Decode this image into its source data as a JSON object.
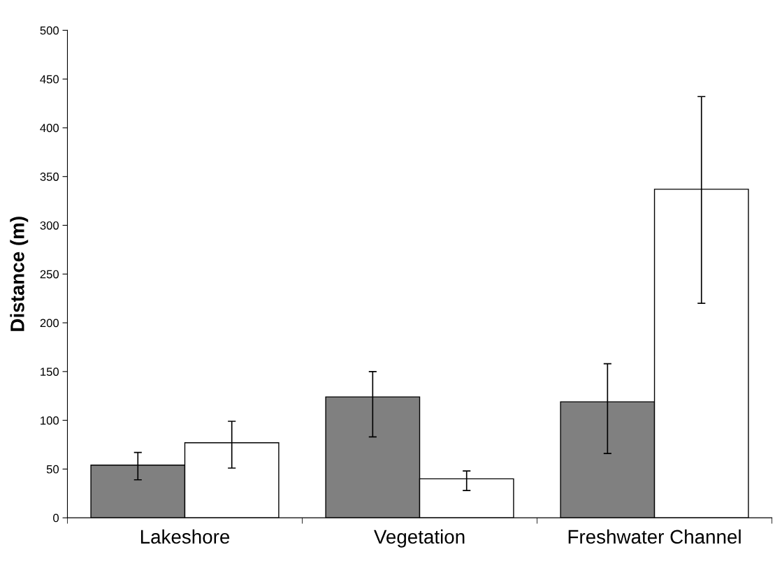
{
  "chart_data": {
    "type": "bar",
    "ylabel": "Distance (m)",
    "categories": [
      "Lakeshore",
      "Vegetation",
      "Freshwater Channel"
    ],
    "series": [
      {
        "color": "#808080",
        "values": [
          54,
          124,
          119
        ],
        "errors": [
          [
            39,
            67
          ],
          [
            83,
            150
          ],
          [
            66,
            158
          ]
        ]
      },
      {
        "color": "#ffffff",
        "values": [
          77,
          40,
          337
        ],
        "errors": [
          [
            51,
            99
          ],
          [
            28,
            48
          ],
          [
            220,
            432
          ]
        ]
      }
    ],
    "ylim": [
      0,
      500
    ],
    "yticks": [
      0,
      50,
      100,
      150,
      200,
      250,
      300,
      350,
      400,
      450,
      500
    ],
    "grid": false,
    "legend": false
  }
}
